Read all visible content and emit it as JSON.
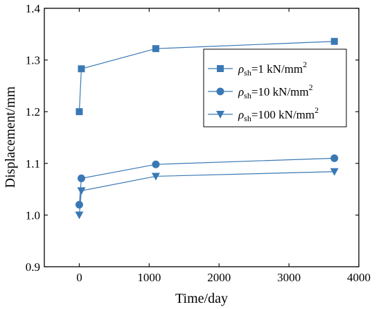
{
  "chart_data": {
    "type": "line",
    "xlabel": "Time/day",
    "ylabel": "Displacement/mm",
    "xlim": [
      -500,
      4000
    ],
    "ylim": [
      0.9,
      1.4
    ],
    "xticks": [
      0,
      1000,
      2000,
      3000,
      4000
    ],
    "yticks": [
      0.9,
      1.0,
      1.1,
      1.2,
      1.3,
      1.4
    ],
    "ytick_labels": [
      "0.9",
      "1.0",
      "1.1",
      "1.2",
      "1.3",
      "1.4"
    ],
    "grid": false,
    "legend_position": "top-right",
    "series": [
      {
        "name": "ρsh=1 kN/mm2",
        "legend": {
          "symbol": "ρ",
          "sub": "sh",
          "value": "=1 kN/mm",
          "sup": "2"
        },
        "marker": "square",
        "color": "#3a78b4",
        "x": [
          0,
          30,
          1095,
          3650
        ],
        "y": [
          1.2,
          1.283,
          1.322,
          1.336
        ]
      },
      {
        "name": "ρsh=10 kN/mm2",
        "legend": {
          "symbol": "ρ",
          "sub": "sh",
          "value": "=10 kN/mm",
          "sup": "2"
        },
        "marker": "circle",
        "color": "#3a78b4",
        "x": [
          0,
          30,
          1095,
          3650
        ],
        "y": [
          1.02,
          1.071,
          1.098,
          1.11
        ]
      },
      {
        "name": "ρsh=100 kN/mm2",
        "legend": {
          "symbol": "ρ",
          "sub": "sh",
          "value": "=100 kN/mm",
          "sup": "2"
        },
        "marker": "triangle-down",
        "color": "#3a78b4",
        "x": [
          0,
          30,
          1095,
          3650
        ],
        "y": [
          1.0,
          1.047,
          1.075,
          1.084
        ]
      }
    ]
  }
}
